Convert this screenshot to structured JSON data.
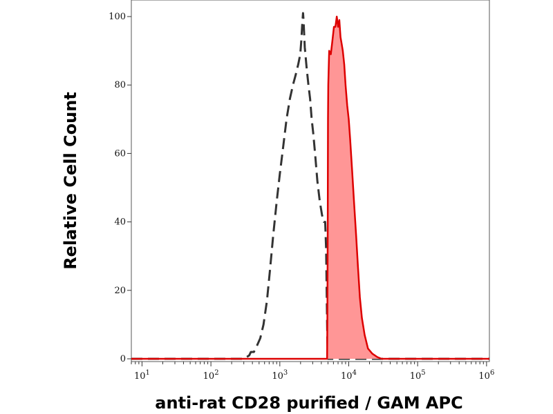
{
  "chart_data": {
    "type": "area",
    "xlabel": "anti-rat CD28 purified / GAM APC",
    "ylabel": "Relative Cell Count",
    "x_scale": "log",
    "xlim": [
      7,
      1100000
    ],
    "ylim": [
      0,
      100
    ],
    "x_ticks": [
      {
        "value": 10,
        "base": "10",
        "exp": "1"
      },
      {
        "value": 100,
        "base": "10",
        "exp": "2"
      },
      {
        "value": 1000,
        "base": "10",
        "exp": "3"
      },
      {
        "value": 10000,
        "base": "10",
        "exp": "4"
      },
      {
        "value": 100000,
        "base": "10",
        "exp": "5"
      },
      {
        "value": 1000000,
        "base": "10",
        "exp": "6"
      }
    ],
    "y_ticks": [
      0,
      20,
      40,
      60,
      80,
      100
    ],
    "grid": false,
    "series": [
      {
        "style": "dashed",
        "color": "#333333",
        "filled": false,
        "points": [
          [
            7,
            0
          ],
          [
            300,
            0
          ],
          [
            330,
            0.5
          ],
          [
            360,
            1
          ],
          [
            380,
            2
          ],
          [
            420,
            2
          ],
          [
            470,
            4
          ],
          [
            520,
            6
          ],
          [
            580,
            10
          ],
          [
            650,
            17
          ],
          [
            720,
            26
          ],
          [
            800,
            36
          ],
          [
            900,
            46
          ],
          [
            1000,
            54
          ],
          [
            1120,
            62
          ],
          [
            1250,
            70
          ],
          [
            1400,
            76
          ],
          [
            1550,
            80
          ],
          [
            1700,
            83
          ],
          [
            1850,
            86
          ],
          [
            1980,
            89
          ],
          [
            2050,
            93
          ],
          [
            2120,
            98
          ],
          [
            2170,
            101
          ],
          [
            2210,
            99
          ],
          [
            2300,
            91
          ],
          [
            2450,
            85
          ],
          [
            2600,
            80
          ],
          [
            2750,
            76
          ],
          [
            2900,
            70
          ],
          [
            3050,
            66
          ],
          [
            3250,
            60
          ],
          [
            3500,
            52
          ],
          [
            3800,
            46
          ],
          [
            4100,
            42
          ],
          [
            4350,
            40
          ],
          [
            4550,
            40
          ],
          [
            4700,
            32
          ],
          [
            4800,
            18
          ],
          [
            4900,
            5
          ],
          [
            5000,
            0
          ],
          [
            1100000,
            0
          ]
        ]
      },
      {
        "style": "solid",
        "color": "#dd0000",
        "fill": "#ff9696",
        "filled": true,
        "points": [
          [
            7,
            0
          ],
          [
            4850,
            0
          ],
          [
            4900,
            12
          ],
          [
            4950,
            38
          ],
          [
            5000,
            70
          ],
          [
            5050,
            80
          ],
          [
            5200,
            90
          ],
          [
            5500,
            89
          ],
          [
            5800,
            93
          ],
          [
            6100,
            97
          ],
          [
            6400,
            97
          ],
          [
            6700,
            100
          ],
          [
            7000,
            97
          ],
          [
            7300,
            99
          ],
          [
            7600,
            94
          ],
          [
            7900,
            92
          ],
          [
            8200,
            90
          ],
          [
            8600,
            86
          ],
          [
            9000,
            80
          ],
          [
            9500,
            74
          ],
          [
            10000,
            70
          ],
          [
            10500,
            64
          ],
          [
            11200,
            55
          ],
          [
            12000,
            45
          ],
          [
            12800,
            36
          ],
          [
            13600,
            27
          ],
          [
            14500,
            18
          ],
          [
            15500,
            12
          ],
          [
            17000,
            7
          ],
          [
            19000,
            3
          ],
          [
            22000,
            1.5
          ],
          [
            26000,
            0.5
          ],
          [
            30000,
            0
          ],
          [
            1100000,
            0
          ]
        ]
      }
    ]
  }
}
